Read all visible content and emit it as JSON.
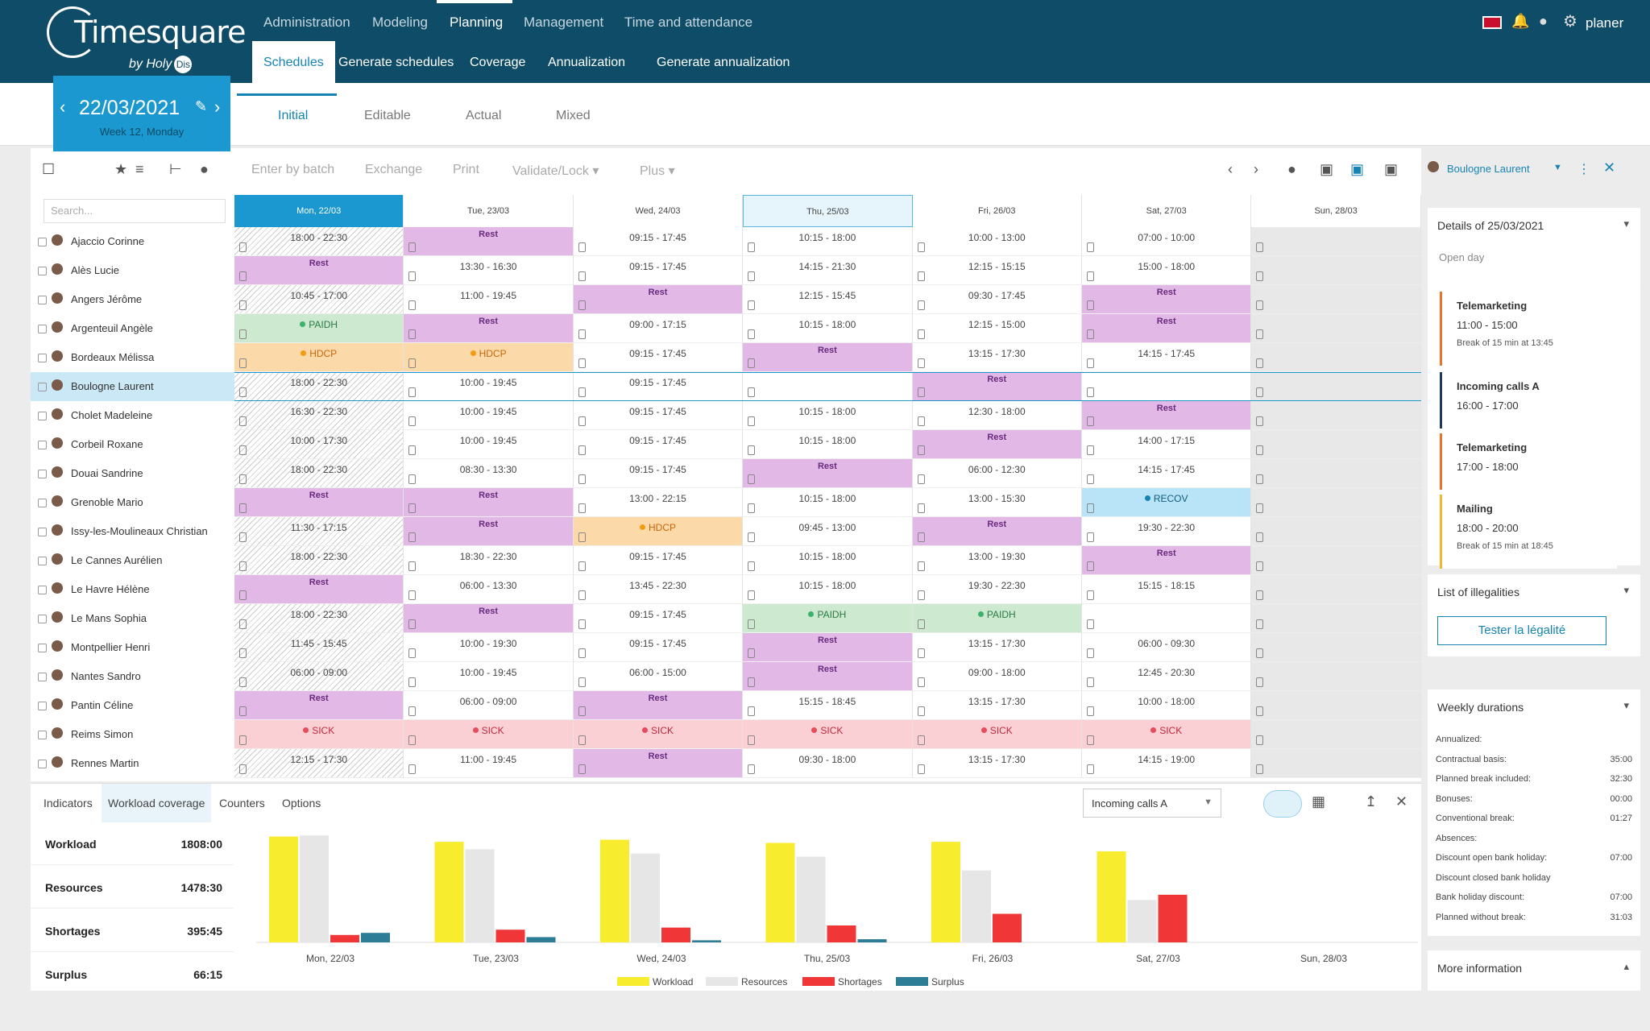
{
  "app": {
    "brand": "Timesquare",
    "brand_sub": "by Holy",
    "brand_badge": "Dis",
    "user": "planer"
  },
  "topnav": [
    "Administration",
    "Modeling",
    "Planning",
    "Management",
    "Time and attendance"
  ],
  "subnav": [
    "Schedules",
    "Generate schedules",
    "Coverage",
    "Annualization",
    "Generate annualization"
  ],
  "date": {
    "value": "22/03/2021",
    "week": "Week 12, Monday"
  },
  "modes": [
    "Initial",
    "Editable",
    "Actual",
    "Mixed"
  ],
  "toolbar": {
    "actions": [
      "Enter by batch",
      "Exchange",
      "Print",
      "Validate/Lock ▾",
      "Plus ▾"
    ],
    "search_placeholder": "Search..."
  },
  "days": [
    "Mon, 22/03",
    "Tue, 23/03",
    "Wed, 24/03",
    "Thu, 25/03",
    "Fri, 26/03",
    "Sat, 27/03",
    "Sun, 28/03"
  ],
  "employees": [
    "Ajaccio Corinne",
    "Alès Lucie",
    "Angers Jérôme",
    "Argenteuil Angèle",
    "Bordeaux Mélissa",
    "Boulogne Laurent",
    "Cholet Madeleine",
    "Corbeil Roxane",
    "Douai Sandrine",
    "Grenoble Mario",
    "Issy-les-Moulineaux Christian",
    "Le Cannes Aurélien",
    "Le Havre Hélène",
    "Le Mans Sophia",
    "Montpellier Henri",
    "Nantes Sandro",
    "Pantin Céline",
    "Reims Simon",
    "Rennes Martin"
  ],
  "schedule": [
    [
      "18:00 - 22:30",
      "Rest",
      "09:15 - 17:45",
      "10:15 - 18:00",
      "10:00 - 13:00",
      "07:00 - 10:00",
      ""
    ],
    [
      "Rest",
      "13:30 - 16:30",
      "09:15 - 17:45",
      "14:15 - 21:30",
      "12:15 - 15:15",
      "15:00 - 18:00",
      ""
    ],
    [
      "10:45 - 17:00",
      "11:00 - 19:45",
      "Rest",
      "12:15 - 15:45",
      "09:30 - 17:45",
      "Rest",
      ""
    ],
    [
      "PAIDH",
      "Rest",
      "09:00 - 17:15",
      "10:15 - 18:00",
      "12:15 - 15:00",
      "Rest",
      ""
    ],
    [
      "HDCP",
      "HDCP",
      "09:15 - 17:45",
      "Rest",
      "13:15 - 17:30",
      "14:15 - 17:45",
      ""
    ],
    [
      "18:00 - 22:30",
      "10:00 - 19:45",
      "09:15 - 17:45",
      "",
      "Rest",
      "",
      ""
    ],
    [
      "16:30 - 22:30",
      "10:00 - 19:45",
      "09:15 - 17:45",
      "10:15 - 18:00",
      "12:30 - 18:00",
      "Rest",
      ""
    ],
    [
      "10:00 - 17:30",
      "10:00 - 19:45",
      "09:15 - 17:45",
      "10:15 - 18:00",
      "Rest",
      "14:00 - 17:15",
      ""
    ],
    [
      "18:00 - 22:30",
      "08:30 - 13:30",
      "09:15 - 17:45",
      "Rest",
      "06:00 - 12:30",
      "14:15 - 17:45",
      ""
    ],
    [
      "Rest",
      "Rest",
      "13:00 - 22:15",
      "10:15 - 18:00",
      "13:00 - 15:30",
      "RECOV",
      ""
    ],
    [
      "11:30 - 17:15",
      "Rest",
      "HDCP",
      "09:45 - 13:00",
      "Rest",
      "19:30 - 22:30",
      ""
    ],
    [
      "18:00 - 22:30",
      "18:30 - 22:30",
      "09:15 - 17:45",
      "10:15 - 18:00",
      "13:00 - 19:30",
      "Rest",
      ""
    ],
    [
      "Rest",
      "06:00 - 13:30",
      "13:45 - 22:30",
      "10:15 - 18:00",
      "19:30 - 22:30",
      "15:15 - 18:15",
      ""
    ],
    [
      "18:00 - 22:30",
      "Rest",
      "09:15 - 17:45",
      "PAIDH",
      "PAIDH",
      "",
      ""
    ],
    [
      "11:45 - 15:45",
      "10:00 - 19:30",
      "09:15 - 17:45",
      "Rest",
      "13:15 - 17:30",
      "06:00 - 09:30",
      ""
    ],
    [
      "06:00 - 09:00",
      "10:00 - 19:45",
      "06:00 - 15:00",
      "Rest",
      "09:00 - 18:00",
      "12:45 - 20:30",
      ""
    ],
    [
      "Rest",
      "06:00 - 09:00",
      "Rest",
      "15:15 - 18:45",
      "13:15 - 17:30",
      "10:00 - 18:00",
      ""
    ],
    [
      "SICK",
      "SICK",
      "SICK",
      "SICK",
      "SICK",
      "SICK",
      ""
    ],
    [
      "12:15 - 17:30",
      "11:00 - 19:45",
      "Rest",
      "09:30 - 18:00",
      "13:15 - 17:30",
      "14:15 - 19:00",
      ""
    ]
  ],
  "right": {
    "person": "Boulogne Laurent",
    "details_title": "Details of 25/03/2021",
    "details_sub": "Open day",
    "tasks": [
      {
        "name": "Telemarketing",
        "time": "11:00 - 15:00",
        "note": "Break of 15 min at 13:45",
        "color": "#e8742c"
      },
      {
        "name": "Incoming calls A",
        "time": "16:00 - 17:00",
        "note": "",
        "color": "#1b3a5c"
      },
      {
        "name": "Telemarketing",
        "time": "17:00 - 18:00",
        "note": "",
        "color": "#e8742c"
      },
      {
        "name": "Mailing",
        "time": "18:00 - 20:00",
        "note": "Break of 15 min at 18:45",
        "color": "#f0b72f"
      }
    ],
    "illegal_title": "List of illegalities",
    "illegal_btn": "Tester la légalité",
    "weekly_title": "Weekly durations",
    "weekly": [
      [
        "Annualized:",
        ""
      ],
      [
        "Contractual basis:",
        "35:00"
      ],
      [
        "Planned break included:",
        "32:30"
      ],
      [
        "Bonuses:",
        "00:00"
      ],
      [
        "Conventional break:",
        "01:27"
      ],
      [
        "Absences:",
        ""
      ],
      [
        "Discount open bank holiday:",
        "07:00"
      ],
      [
        "Discount closed bank holiday",
        ""
      ],
      [
        "Bank holiday discount:",
        "07:00"
      ],
      [
        "Planned without break:",
        "31:03"
      ]
    ],
    "more": "More information"
  },
  "bottom": {
    "tabs": [
      "Indicators",
      "Workload coverage",
      "Counters",
      "Options"
    ],
    "select": "Incoming calls A"
  },
  "indicators": [
    [
      "Workload",
      "1808:00"
    ],
    [
      "Resources",
      "1478:30"
    ],
    [
      "Shortages",
      "395:45"
    ],
    [
      "Surplus",
      "66:15"
    ]
  ],
  "chart_data": {
    "type": "bar",
    "categories": [
      "Mon, 22/03",
      "Tue, 23/03",
      "Wed, 24/03",
      "Thu, 25/03",
      "Fri, 26/03",
      "Sat, 27/03",
      "Sun, 28/03"
    ],
    "series": [
      {
        "name": "Workload",
        "color": "#f8ec2e",
        "values": [
          100,
          95,
          97,
          94,
          95,
          86,
          0
        ]
      },
      {
        "name": "Resources",
        "color": "#e6e6e6",
        "values": [
          101,
          88,
          84,
          81,
          68,
          40,
          0
        ]
      },
      {
        "name": "Shortages",
        "color": "#f03636",
        "values": [
          7,
          12,
          14,
          16,
          27,
          45,
          0
        ]
      },
      {
        "name": "Surplus",
        "color": "#2e7d96",
        "values": [
          9,
          5,
          2,
          3,
          0,
          0,
          0
        ]
      }
    ],
    "ylim": [
      0,
      105
    ]
  }
}
